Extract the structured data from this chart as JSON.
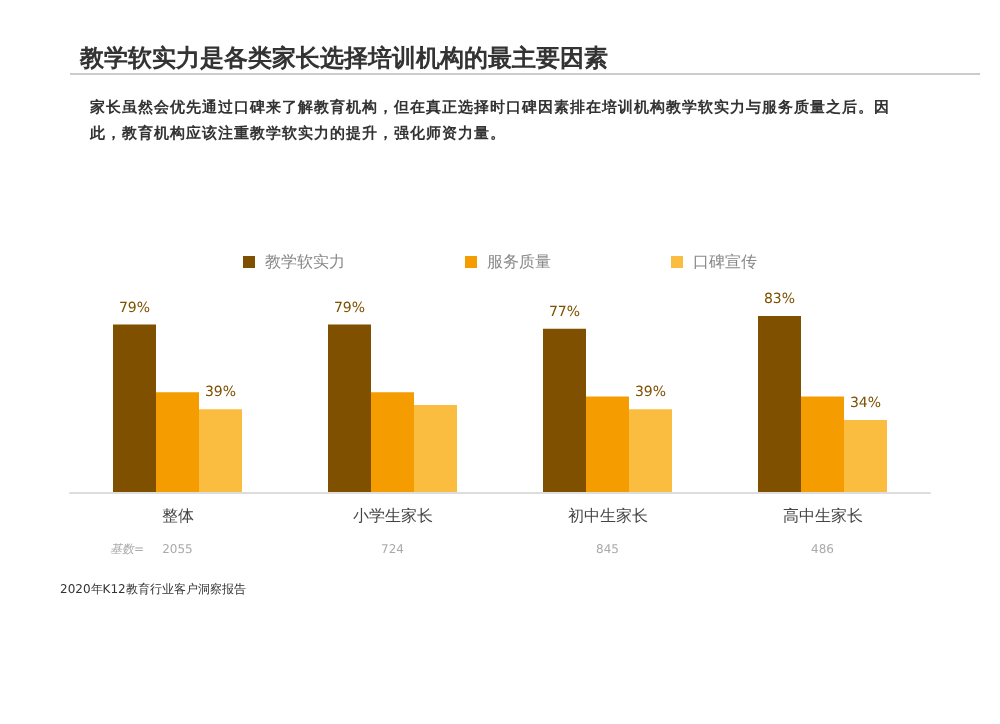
{
  "chart_data": {
    "type": "bar",
    "title": "教学软实力是各类家长选择培训机构的最主要因素",
    "subtitle": "家长虽然会优先通过口碑来了解教育机构，但在真正选择时口碑因素排在培训机构教学软实力与服务质量之后。因此，教育机构应该注重教学软实力的提升，强化师资力量。",
    "categories": [
      "整体",
      "小学生家长",
      "初中生家长",
      "高中生家长"
    ],
    "series": [
      {
        "name": "教学软实力",
        "color": "#7f5000",
        "values": [
          79,
          79,
          77,
          83
        ],
        "value_labels": [
          "79%",
          "79%",
          "77%",
          "83%"
        ]
      },
      {
        "name": "服务质量",
        "color": "#f59c00",
        "values": [
          47,
          47,
          45,
          45
        ],
        "value_labels": [
          null,
          null,
          null,
          null
        ]
      },
      {
        "name": "口碑宣传",
        "color": "#fbbd3f",
        "values": [
          39,
          41,
          39,
          34
        ],
        "value_labels": [
          "39%",
          null,
          "39%",
          "34%"
        ]
      }
    ],
    "legend": "top",
    "annotations": [
      "基数=",
      "2055",
      "724",
      "845",
      "486",
      "2020年K12教育行业客户洞察报告"
    ]
  }
}
